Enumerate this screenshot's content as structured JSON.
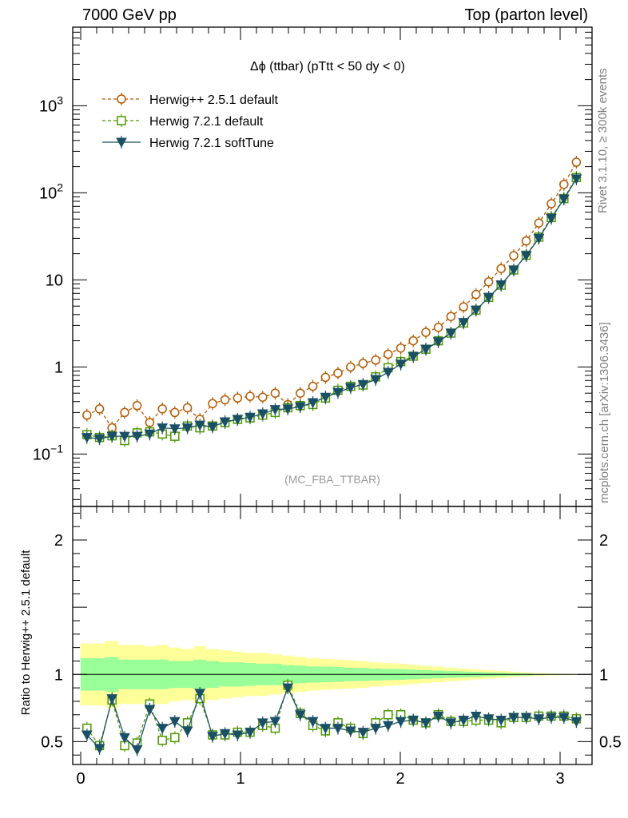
{
  "header": {
    "left": "7000 GeV pp",
    "right": "Top (parton level)"
  },
  "side_labels": {
    "rivet": "Rivet 3.1.10, ≥ 300k events",
    "mcplots": "mcplots.cern.ch [arXiv:1306.3436]"
  },
  "chart_data": [
    {
      "type": "line",
      "panel": "main",
      "title": "Δϕ (ttbar) (pTtt < 50 dy < 0)",
      "watermark": "(MC_FBA_TTBAR)",
      "xlabel": "",
      "ylabel": "",
      "yscale": "log",
      "xlim": [
        -0.05,
        3.2
      ],
      "ylim": [
        0.025,
        8000
      ],
      "x_ticks": [
        "0",
        "1",
        "2",
        "3"
      ],
      "y_ticks": [
        {
          "value": 0.1,
          "base": "10",
          "exp": "−1"
        },
        {
          "value": 1,
          "base": "1",
          "exp": ""
        },
        {
          "value": 10,
          "base": "10",
          "exp": ""
        },
        {
          "value": 100,
          "base": "10",
          "exp": "2"
        },
        {
          "value": 1000,
          "base": "10",
          "exp": "3"
        }
      ],
      "legend_position": "top-left",
      "x": [
        0.039,
        0.118,
        0.196,
        0.275,
        0.353,
        0.432,
        0.511,
        0.589,
        0.668,
        0.746,
        0.825,
        0.903,
        0.982,
        1.06,
        1.139,
        1.217,
        1.296,
        1.374,
        1.453,
        1.532,
        1.61,
        1.689,
        1.767,
        1.846,
        1.924,
        2.003,
        2.081,
        2.16,
        2.238,
        2.317,
        2.396,
        2.474,
        2.553,
        2.631,
        2.71,
        2.788,
        2.867,
        2.945,
        3.024,
        3.102
      ],
      "series": [
        {
          "name": "Herwig++ 2.5.1 default",
          "color": "#b35900",
          "marker": "open-circle",
          "linestyle": "dashed",
          "values": [
            0.28,
            0.33,
            0.2,
            0.3,
            0.36,
            0.23,
            0.33,
            0.3,
            0.34,
            0.25,
            0.38,
            0.42,
            0.44,
            0.46,
            0.45,
            0.5,
            0.37,
            0.5,
            0.6,
            0.76,
            0.85,
            1.0,
            1.1,
            1.2,
            1.4,
            1.65,
            2.0,
            2.5,
            2.85,
            3.8,
            4.9,
            6.8,
            9.5,
            13.5,
            19.0,
            28.0,
            45.0,
            75.0,
            125,
            225
          ]
        },
        {
          "name": "Herwig 7.2.1 default",
          "color": "#4d9900",
          "marker": "open-square",
          "linestyle": "dashed",
          "values": [
            0.167,
            0.155,
            0.162,
            0.143,
            0.175,
            0.18,
            0.17,
            0.16,
            0.21,
            0.2,
            0.21,
            0.23,
            0.25,
            0.26,
            0.28,
            0.3,
            0.34,
            0.36,
            0.37,
            0.44,
            0.54,
            0.6,
            0.62,
            0.77,
            0.98,
            1.15,
            1.33,
            1.6,
            2.0,
            2.45,
            3.2,
            4.5,
            6.3,
            8.7,
            13.0,
            19.2,
            31.0,
            52.0,
            86.0,
            150
          ]
        },
        {
          "name": "Herwig 7.2.1 softTune",
          "color": "#1a4f66",
          "marker": "filled-triangle-down",
          "linestyle": "solid",
          "values": [
            0.155,
            0.15,
            0.16,
            0.16,
            0.16,
            0.17,
            0.2,
            0.195,
            0.2,
            0.215,
            0.205,
            0.235,
            0.25,
            0.265,
            0.29,
            0.325,
            0.33,
            0.35,
            0.39,
            0.45,
            0.51,
            0.58,
            0.63,
            0.72,
            0.87,
            1.08,
            1.32,
            1.6,
            1.95,
            2.45,
            3.25,
            4.5,
            6.3,
            8.8,
            13.0,
            19.0,
            30.0,
            51.0,
            85.0,
            145
          ]
        }
      ]
    },
    {
      "type": "line",
      "panel": "ratio",
      "ylabel": "Ratio to Herwig++ 2.5.1 default",
      "xlim": [
        -0.05,
        3.2
      ],
      "ylim": [
        0.33,
        2.25
      ],
      "x_ticks": [
        "0",
        "1",
        "2",
        "3"
      ],
      "y_ticks": [
        "0.5",
        "1",
        "2"
      ],
      "reference_line": 1,
      "band_colors": {
        "outer": "#ffff99",
        "inner": "#99ff99"
      },
      "band_outer_halfwidth": [
        0.23,
        0.23,
        0.25,
        0.22,
        0.22,
        0.21,
        0.22,
        0.2,
        0.19,
        0.21,
        0.19,
        0.18,
        0.17,
        0.16,
        0.16,
        0.15,
        0.14,
        0.13,
        0.12,
        0.115,
        0.11,
        0.105,
        0.1,
        0.09,
        0.085,
        0.08,
        0.072,
        0.065,
        0.058,
        0.05,
        0.044,
        0.038,
        0.032,
        0.026,
        0.02,
        0.015,
        0.01,
        0.007,
        0.005,
        0.003
      ],
      "band_inner_halfwidth": [
        0.12,
        0.12,
        0.13,
        0.11,
        0.11,
        0.11,
        0.11,
        0.1,
        0.1,
        0.11,
        0.1,
        0.09,
        0.09,
        0.085,
        0.08,
        0.08,
        0.07,
        0.065,
        0.06,
        0.058,
        0.055,
        0.05,
        0.048,
        0.045,
        0.042,
        0.04,
        0.036,
        0.032,
        0.029,
        0.025,
        0.022,
        0.019,
        0.016,
        0.013,
        0.01,
        0.008,
        0.005,
        0.0035,
        0.0025,
        0.0015
      ],
      "series": [
        {
          "name": "Herwig 7.2.1 default",
          "color": "#4d9900",
          "marker": "open-square",
          "linestyle": "dashed",
          "values": [
            0.6,
            0.47,
            0.81,
            0.47,
            0.49,
            0.78,
            0.51,
            0.53,
            0.64,
            0.82,
            0.55,
            0.55,
            0.57,
            0.57,
            0.62,
            0.6,
            0.92,
            0.71,
            0.62,
            0.58,
            0.64,
            0.6,
            0.56,
            0.64,
            0.7,
            0.7,
            0.66,
            0.64,
            0.7,
            0.65,
            0.65,
            0.66,
            0.66,
            0.64,
            0.68,
            0.68,
            0.69,
            0.69,
            0.69,
            0.67
          ]
        },
        {
          "name": "Herwig 7.2.1 softTune",
          "color": "#1a4f66",
          "marker": "filled-triangle-down",
          "linestyle": "solid",
          "values": [
            0.55,
            0.45,
            0.82,
            0.53,
            0.44,
            0.74,
            0.6,
            0.65,
            0.58,
            0.86,
            0.54,
            0.56,
            0.55,
            0.57,
            0.64,
            0.65,
            0.9,
            0.7,
            0.65,
            0.6,
            0.6,
            0.58,
            0.57,
            0.6,
            0.62,
            0.65,
            0.66,
            0.64,
            0.69,
            0.64,
            0.66,
            0.69,
            0.67,
            0.66,
            0.68,
            0.68,
            0.67,
            0.68,
            0.68,
            0.65
          ]
        }
      ]
    }
  ]
}
